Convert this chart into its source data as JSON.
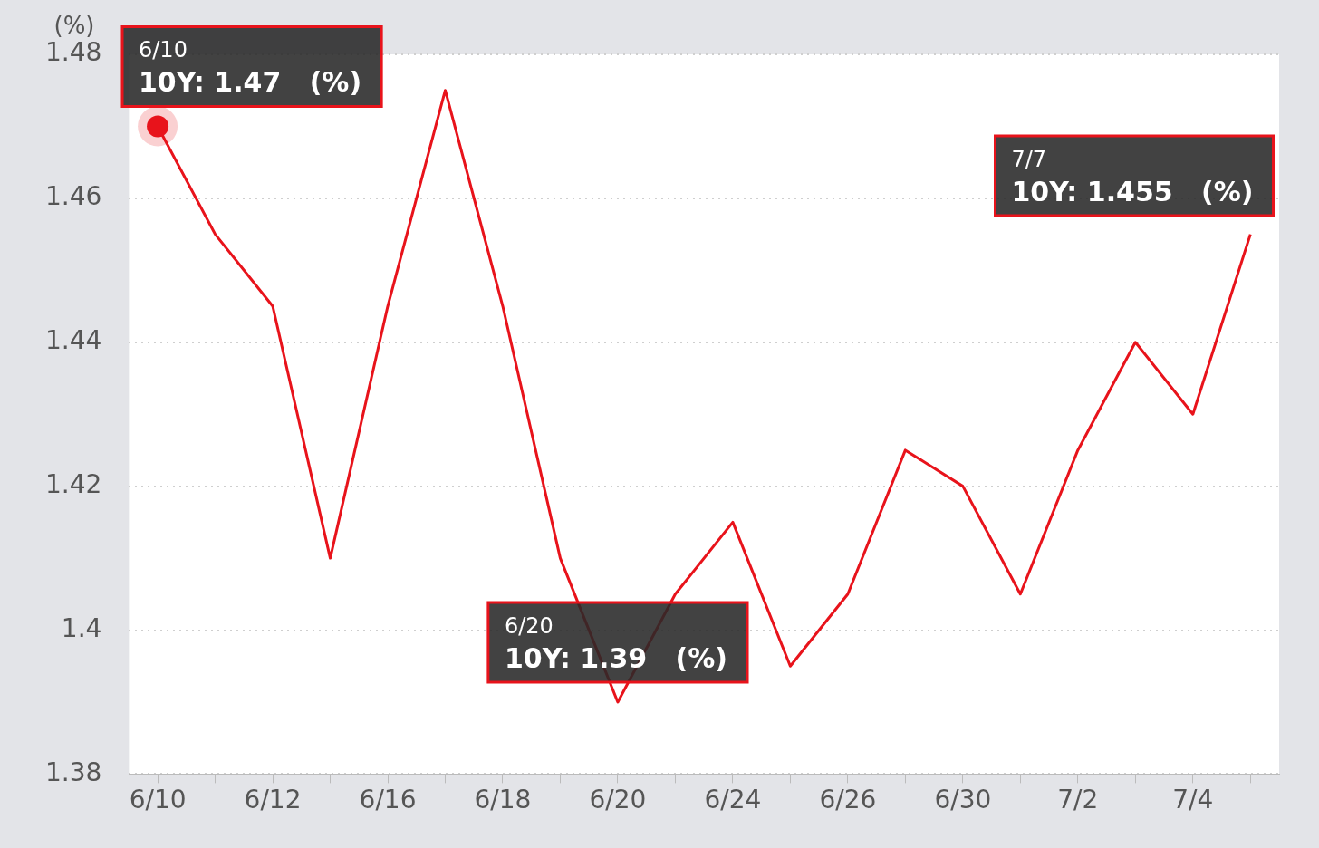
{
  "chart_data": {
    "type": "line",
    "ylabel": "(%)",
    "categories": [
      "6/10",
      null,
      "6/12",
      null,
      "6/16",
      null,
      "6/18",
      null,
      "6/20",
      null,
      "6/24",
      null,
      "6/26",
      null,
      "6/30",
      null,
      "7/2",
      null,
      "7/4",
      null
    ],
    "series": [
      {
        "color": "#e8131b",
        "values": [
          1.47,
          1.455,
          1.445,
          1.41,
          1.445,
          1.475,
          1.445,
          1.41,
          1.39,
          1.405,
          1.415,
          1.395,
          1.405,
          1.425,
          1.42,
          1.405,
          1.425,
          1.44,
          1.43,
          1.455
        ]
      }
    ],
    "ylim": [
      1.38,
      1.48
    ],
    "yticks": [
      1.38,
      1.42,
      1.44,
      1.46,
      {
        "value": 1.4,
        "label": "1.4"
      },
      1.48
    ],
    "grid": "y",
    "legend": false,
    "marker": "none",
    "line_style": "solid",
    "annotations": [
      {
        "text": "6/10\n10Y: 1.47   (%)",
        "x": "6/10",
        "y": 1.47
      },
      {
        "text": "6/20\n10Y: 1.39   (%)",
        "x": "6/20",
        "y": 1.39
      },
      "7/7\n10Y: 1.455   (%)"
    ]
  }
}
